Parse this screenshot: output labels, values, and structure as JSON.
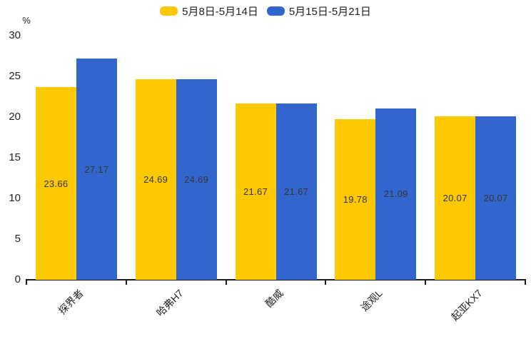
{
  "chart_data": {
    "type": "bar",
    "title": "",
    "categories": [
      "探界者",
      "哈弗H7",
      "酷威",
      "途观L",
      "起亚KX7"
    ],
    "series": [
      {
        "name": "5月8日-5月14日",
        "color": "#FCC800",
        "values": [
          23.66,
          24.69,
          21.67,
          19.78,
          20.07
        ]
      },
      {
        "name": "5月15日-5月21日",
        "color": "#3366CC",
        "values": [
          27.17,
          24.69,
          21.67,
          21.09,
          20.07
        ]
      }
    ],
    "value_labels": [
      "23.66",
      "27.17",
      "24.69",
      "24.69",
      "21.67",
      "21.67",
      "19.78",
      "21.09",
      "20.07",
      "20.07"
    ],
    "xlabel": "",
    "ylabel": "%",
    "ylim": [
      0,
      30
    ],
    "yticks": [
      0,
      5,
      10,
      15,
      20,
      25,
      30
    ],
    "grid": false,
    "legend_position": "top",
    "value_label_color": "#333333",
    "axis_color": "#1c1c1c"
  }
}
